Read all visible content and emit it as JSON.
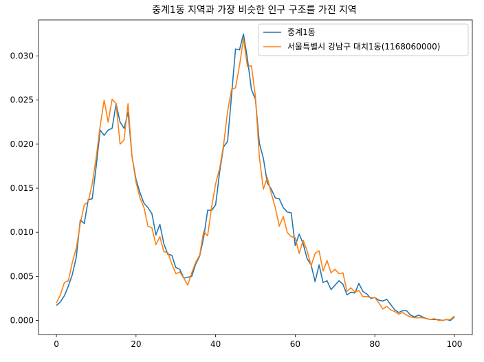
{
  "chart_data": {
    "type": "line",
    "title": "중계1동 지역과 가장 비슷한 인구 구조를 가진 지역",
    "xlabel": "",
    "ylabel": "",
    "xlim": [
      -4.5,
      104.5
    ],
    "ylim": [
      -0.0016,
      0.0341
    ],
    "xticks": [
      0,
      20,
      40,
      60,
      80,
      100
    ],
    "xtick_labels": [
      "0",
      "20",
      "40",
      "60",
      "80",
      "100"
    ],
    "yticks": [
      0.0,
      0.005,
      0.01,
      0.015,
      0.02,
      0.025,
      0.03
    ],
    "ytick_labels": [
      "0.000",
      "0.005",
      "0.010",
      "0.015",
      "0.020",
      "0.025",
      "0.030"
    ],
    "grid": false,
    "legend_position": "upper-right",
    "x": [
      0,
      1,
      2,
      3,
      4,
      5,
      6,
      7,
      8,
      9,
      10,
      11,
      12,
      13,
      14,
      15,
      16,
      17,
      18,
      19,
      20,
      21,
      22,
      23,
      24,
      25,
      26,
      27,
      28,
      29,
      30,
      31,
      32,
      33,
      34,
      35,
      36,
      37,
      38,
      39,
      40,
      41,
      42,
      43,
      44,
      45,
      46,
      47,
      48,
      49,
      50,
      51,
      52,
      53,
      54,
      55,
      56,
      57,
      58,
      59,
      60,
      61,
      62,
      63,
      64,
      65,
      66,
      67,
      68,
      69,
      70,
      71,
      72,
      73,
      74,
      75,
      76,
      77,
      78,
      79,
      80,
      81,
      82,
      83,
      84,
      85,
      86,
      87,
      88,
      89,
      90,
      91,
      92,
      93,
      94,
      95,
      96,
      97,
      98,
      99,
      100
    ],
    "series": [
      {
        "name": "중계1동",
        "color": "#1f77b4",
        "values": [
          0.0017,
          0.0021,
          0.0028,
          0.0039,
          0.0052,
          0.0072,
          0.0114,
          0.011,
          0.0137,
          0.0138,
          0.0175,
          0.0216,
          0.021,
          0.0216,
          0.0218,
          0.0246,
          0.0225,
          0.0218,
          0.0236,
          0.0186,
          0.016,
          0.0145,
          0.0133,
          0.0128,
          0.0121,
          0.0097,
          0.0109,
          0.0087,
          0.0075,
          0.0074,
          0.006,
          0.0058,
          0.0048,
          0.0049,
          0.005,
          0.0064,
          0.0073,
          0.0094,
          0.0125,
          0.0125,
          0.0131,
          0.0168,
          0.0197,
          0.0203,
          0.0255,
          0.0308,
          0.0307,
          0.0325,
          0.0297,
          0.0262,
          0.0251,
          0.0201,
          0.0184,
          0.0156,
          0.0149,
          0.0139,
          0.0138,
          0.0128,
          0.0123,
          0.0122,
          0.0085,
          0.0098,
          0.0087,
          0.007,
          0.0063,
          0.0044,
          0.0063,
          0.0043,
          0.0045,
          0.0035,
          0.004,
          0.0045,
          0.0041,
          0.0029,
          0.0032,
          0.0031,
          0.0042,
          0.0033,
          0.003,
          0.0025,
          0.0026,
          0.0023,
          0.0022,
          0.0024,
          0.0018,
          0.0012,
          0.0009,
          0.0011,
          0.0011,
          0.0006,
          0.0004,
          0.0006,
          0.0004,
          0.0002,
          0.0001,
          0.0001,
          0.0001,
          0.0,
          0.0001,
          0.0,
          0.0004
        ]
      },
      {
        "name": "서울특별시 강남구 대치1동(1168060000)",
        "color": "#ff7f0e",
        "values": [
          0.002,
          0.0029,
          0.0043,
          0.0045,
          0.0066,
          0.0082,
          0.011,
          0.0131,
          0.0135,
          0.0155,
          0.0185,
          0.0221,
          0.025,
          0.0225,
          0.0251,
          0.0246,
          0.02,
          0.0205,
          0.0246,
          0.0186,
          0.0157,
          0.0139,
          0.0128,
          0.0107,
          0.0105,
          0.0086,
          0.0095,
          0.0078,
          0.0077,
          0.0064,
          0.0053,
          0.0055,
          0.0048,
          0.004,
          0.0054,
          0.0066,
          0.0074,
          0.0101,
          0.0096,
          0.0129,
          0.0155,
          0.0172,
          0.0199,
          0.0237,
          0.0262,
          0.0264,
          0.0289,
          0.032,
          0.0288,
          0.0289,
          0.0254,
          0.0185,
          0.0149,
          0.0162,
          0.0144,
          0.0128,
          0.0107,
          0.0118,
          0.01,
          0.0095,
          0.0094,
          0.0076,
          0.0091,
          0.0079,
          0.0062,
          0.0076,
          0.0079,
          0.0056,
          0.0068,
          0.0054,
          0.0058,
          0.0053,
          0.0054,
          0.0033,
          0.0037,
          0.0032,
          0.0034,
          0.0027,
          0.0027,
          0.0026,
          0.0026,
          0.002,
          0.0013,
          0.0016,
          0.0012,
          0.001,
          0.0007,
          0.0009,
          0.0006,
          0.0004,
          0.0003,
          0.0003,
          0.0003,
          0.0002,
          0.0001,
          0.0002,
          0.0,
          0.0,
          0.0001,
          0.0001,
          0.0005
        ]
      }
    ]
  }
}
